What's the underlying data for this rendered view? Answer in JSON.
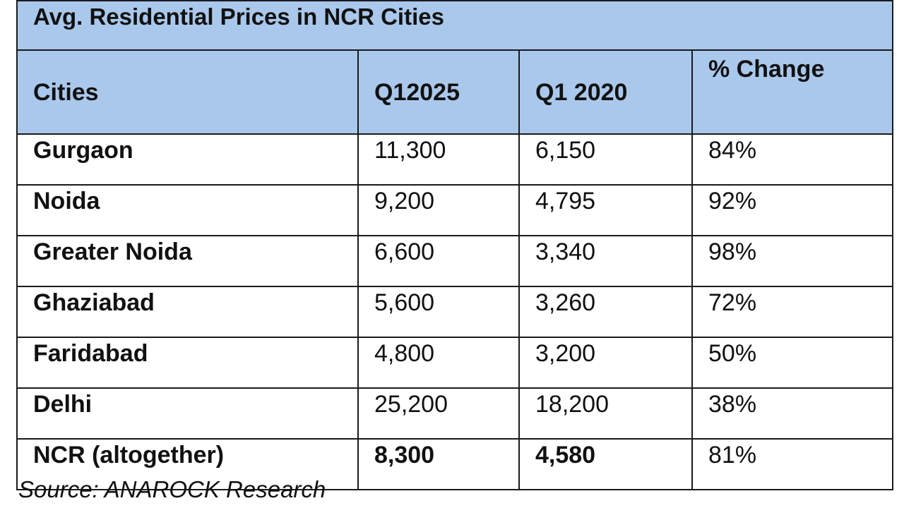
{
  "table": {
    "title": "Avg. Residential Prices in NCR Cities",
    "headers": [
      "Cities",
      "Q12025",
      "Q1 2020",
      "% Change"
    ],
    "rows": [
      {
        "city": "Gurgaon",
        "q1_2025": "11,300",
        "q1_2020": "6,150",
        "change": "84%"
      },
      {
        "city": "Noida",
        "q1_2025": "9,200",
        "q1_2020": "4,795",
        "change": "92%"
      },
      {
        "city": "Greater Noida",
        "q1_2025": "6,600",
        "q1_2020": "3,340",
        "change": "98%"
      },
      {
        "city": "Ghaziabad",
        "q1_2025": "5,600",
        "q1_2020": "3,260",
        "change": "72%"
      },
      {
        "city": "Faridabad",
        "q1_2025": "4,800",
        "q1_2020": "3,200",
        "change": "50%"
      },
      {
        "city": "Delhi",
        "q1_2025": "25,200",
        "q1_2020": "18,200",
        "change": "38%"
      },
      {
        "city": "NCR (altogether)",
        "q1_2025": "8,300",
        "q1_2020": "4,580",
        "change": "81%"
      }
    ]
  },
  "source": "Source: ANAROCK Research",
  "colors": {
    "header_background": "#a9c8ec",
    "border": "#1a1a1a"
  }
}
